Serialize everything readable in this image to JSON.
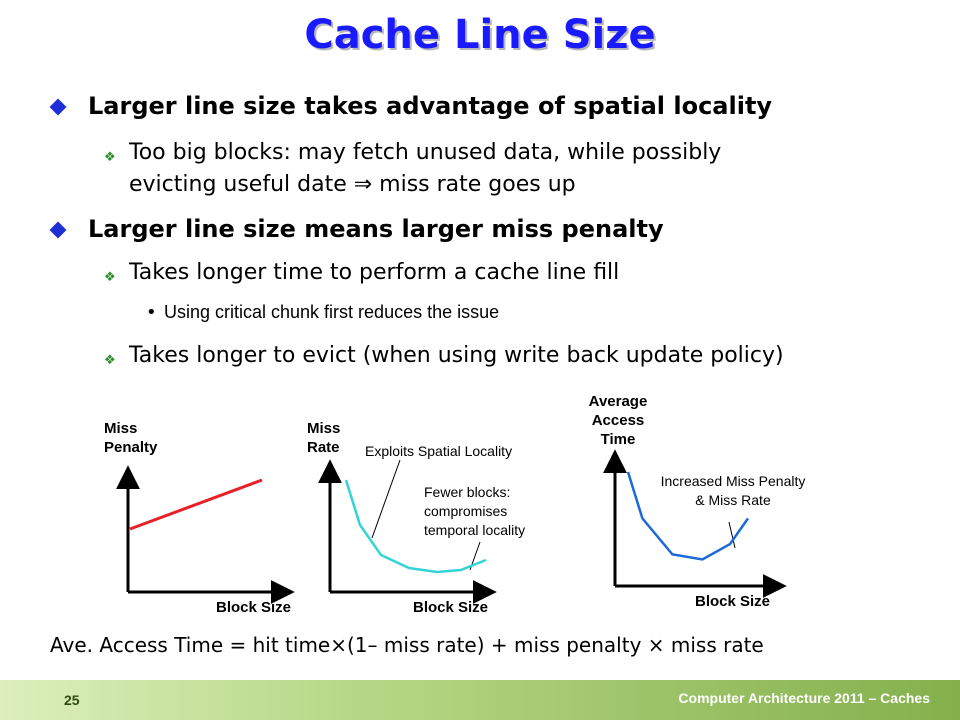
{
  "slide": {
    "title": "Cache Line Size",
    "bullets": [
      {
        "text": "Larger line size takes advantage of spatial locality",
        "sub": [
          {
            "lines": [
              "Too big blocks: may fetch unused data, while possibly",
              "evicting useful date ⇒ miss rate goes up"
            ]
          }
        ]
      },
      {
        "text": "Larger line size means larger miss penalty",
        "sub": [
          {
            "lines": [
              "Takes longer time to perform a cache line fill"
            ],
            "sub": [
              "Using critical chunk first reduces the issue"
            ]
          },
          {
            "lines": [
              "Takes longer to evict (when using write back update policy)"
            ]
          }
        ]
      }
    ],
    "formula": "Ave. Access Time = hit time×(1– miss rate) + miss penalty × miss rate",
    "page_number": "25",
    "footer": "Computer Architecture 2011 – Caches"
  },
  "colors": {
    "title": "#1a1aff",
    "penalty_line": "#e8202a",
    "miss_rate_curve": "#33d4d4",
    "access_time_curve": "#1a6ad8"
  },
  "chart_data": [
    {
      "type": "line",
      "title": "",
      "ylabel_lines": [
        "Miss",
        "Penalty"
      ],
      "xlabel": "Block Size",
      "annotations": [],
      "series": [
        {
          "x": [
            0,
            1
          ],
          "values": [
            0.3,
            1.0
          ]
        }
      ]
    },
    {
      "type": "line",
      "title": "",
      "ylabel_lines": [
        "Miss",
        "Rate"
      ],
      "xlabel": "Block Size",
      "annotations": [
        {
          "text_lines": [
            "Exploits Spatial Locality"
          ]
        },
        {
          "text_lines": [
            "Fewer blocks:",
            "compromises",
            "temporal locality"
          ]
        }
      ],
      "series": [
        {
          "x": [
            0,
            0.1,
            0.25,
            0.45,
            0.65,
            0.82,
            1.0
          ],
          "values": [
            1.0,
            0.55,
            0.25,
            0.12,
            0.08,
            0.1,
            0.2
          ]
        }
      ]
    },
    {
      "type": "line",
      "title": "",
      "ylabel_lines": [
        "Average",
        "Access",
        "Time"
      ],
      "xlabel": "Block Size",
      "annotations": [
        {
          "text_lines": [
            "Increased Miss Penalty",
            "& Miss Rate"
          ]
        }
      ],
      "series": [
        {
          "x": [
            0,
            0.12,
            0.37,
            0.62,
            0.85,
            1.0
          ],
          "values": [
            1.0,
            0.55,
            0.2,
            0.15,
            0.3,
            0.55
          ]
        }
      ]
    }
  ]
}
